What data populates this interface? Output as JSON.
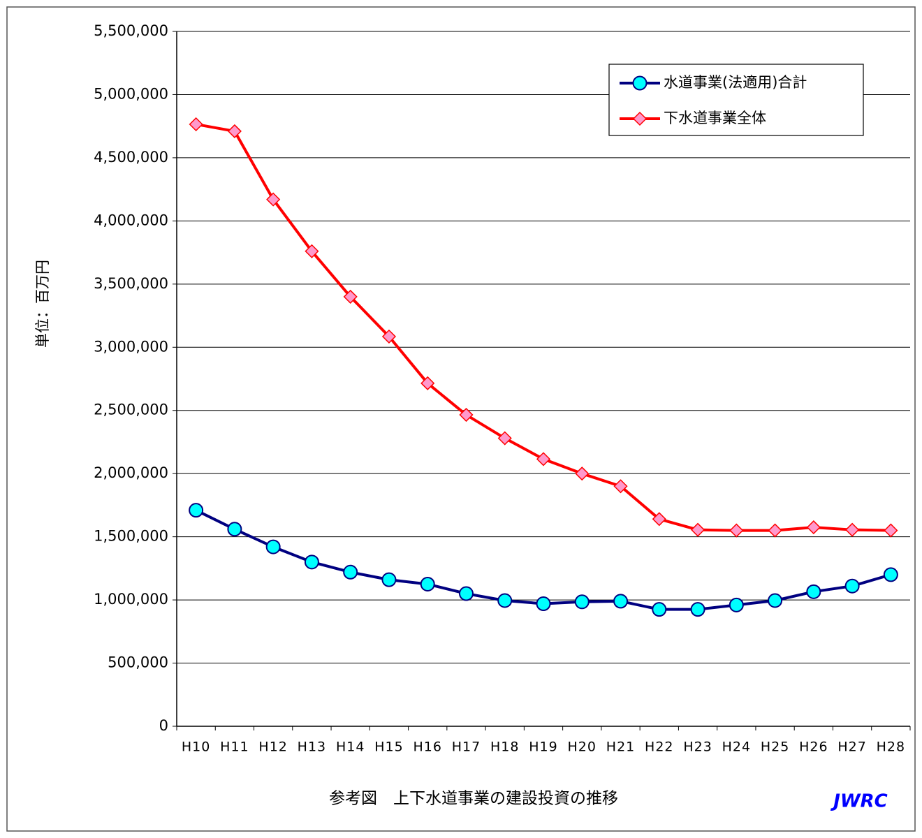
{
  "chart_data": {
    "type": "line",
    "title": "参考図　上下水道事業の建設投資の推移",
    "logo": "JWRC",
    "y_label": "単位：百万円",
    "categories": [
      "H10",
      "H11",
      "H12",
      "H13",
      "H14",
      "H15",
      "H16",
      "H17",
      "H18",
      "H19",
      "H20",
      "H21",
      "H22",
      "H23",
      "H24",
      "H25",
      "H26",
      "H27",
      "H28"
    ],
    "series": [
      {
        "name": "水道事業(法適用)合計",
        "color": "#000080",
        "marker": "circle",
        "marker_fill": "#00ffff",
        "values": [
          1710000,
          1560000,
          1420000,
          1300000,
          1220000,
          1160000,
          1125000,
          1050000,
          995000,
          970000,
          985000,
          990000,
          925000,
          925000,
          960000,
          995000,
          1065000,
          1110000,
          1200000
        ]
      },
      {
        "name": "下水道事業全体",
        "color": "#ff0000",
        "marker": "diamond",
        "marker_fill": "#ff99cc",
        "values": [
          4765000,
          4710000,
          4170000,
          3760000,
          3400000,
          3085000,
          2715000,
          2465000,
          2280000,
          2115000,
          2000000,
          1900000,
          1640000,
          1555000,
          1550000,
          1550000,
          1575000,
          1555000,
          1550000
        ]
      }
    ],
    "ylim": [
      0,
      5500000
    ],
    "yticks": [
      0,
      {
        "value": 500000,
        "label": "500,000"
      },
      {
        "value": 1000000,
        "label": "1,000,000"
      },
      {
        "value": 1500000,
        "label": "1,500,000"
      },
      {
        "value": 2000000,
        "label": "2,000,000"
      },
      {
        "value": 2500000,
        "label": "2,500,000"
      },
      {
        "value": 3000000,
        "label": "3,000,000"
      },
      {
        "value": 3500000,
        "label": "3,500,000"
      },
      {
        "value": 4000000,
        "label": "4,000,000"
      },
      {
        "value": 4500000,
        "label": "4,500,000"
      },
      {
        "value": 5000000,
        "label": "5,000,000"
      },
      {
        "value": 5500000,
        "label": "5,500,000"
      }
    ],
    "grid": true,
    "legend": "top-right"
  }
}
